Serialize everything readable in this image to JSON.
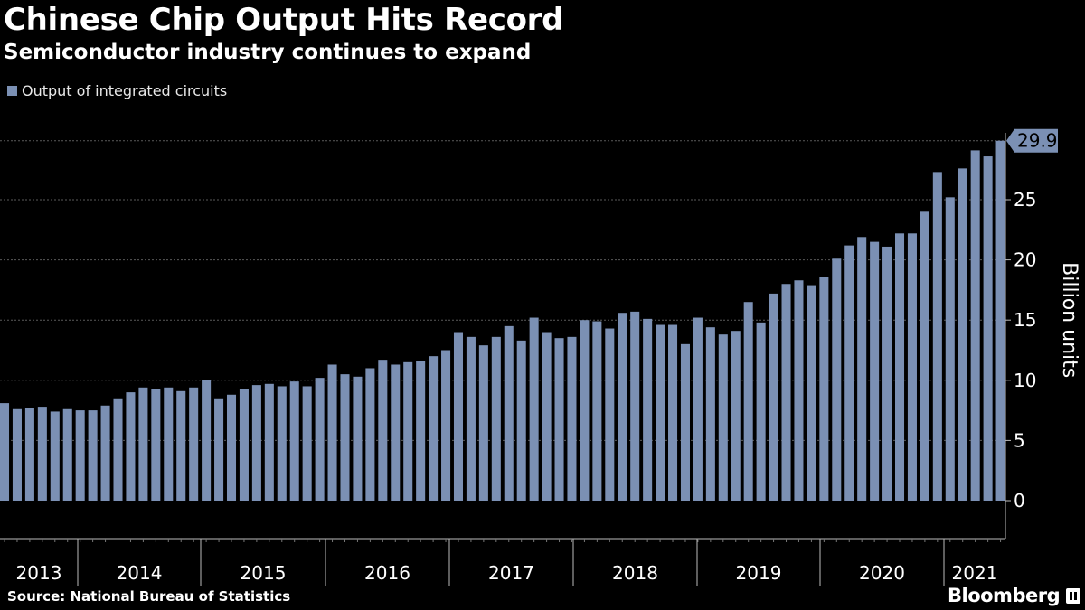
{
  "chart_data": {
    "type": "bar",
    "title": "Chinese Chip Output Hits Record",
    "subtitle": "Semiconductor industry continues to expand",
    "ylabel": "Billion units",
    "ylim": [
      0,
      30
    ],
    "yticks": [
      0,
      5,
      10,
      15,
      20,
      25
    ],
    "grid": true,
    "legend_position": "top-left",
    "color": "#7b90b4",
    "x_period_labels": [
      "2013",
      "2014",
      "2015",
      "2016",
      "2017",
      "2018",
      "2019",
      "2020",
      "2021"
    ],
    "callout": {
      "value": "29.9"
    },
    "series": [
      {
        "name": "Output of integrated circuits",
        "values": [
          8.1,
          7.6,
          7.7,
          7.8,
          7.4,
          7.6,
          7.5,
          7.5,
          7.9,
          8.5,
          9.0,
          9.4,
          9.3,
          9.4,
          9.1,
          9.4,
          10.0,
          8.5,
          8.8,
          9.3,
          9.6,
          9.7,
          9.5,
          9.9,
          9.5,
          10.2,
          11.3,
          10.5,
          10.3,
          11.0,
          11.7,
          11.3,
          11.5,
          11.6,
          12.0,
          12.5,
          14.0,
          13.6,
          12.9,
          13.6,
          14.5,
          13.3,
          15.2,
          14.0,
          13.5,
          13.6,
          15.0,
          14.9,
          14.3,
          15.6,
          15.7,
          15.1,
          14.6,
          14.6,
          13.0,
          15.2,
          14.4,
          13.8,
          14.1,
          16.5,
          14.8,
          17.2,
          18.0,
          18.3,
          17.9,
          18.6,
          20.1,
          21.2,
          21.9,
          21.5,
          21.1,
          22.2,
          22.2,
          24.0,
          27.3,
          25.2,
          27.6,
          29.1,
          28.6,
          29.9
        ]
      }
    ]
  },
  "source_text": "Source: National Bureau of Statistics",
  "brand": "Bloomberg"
}
